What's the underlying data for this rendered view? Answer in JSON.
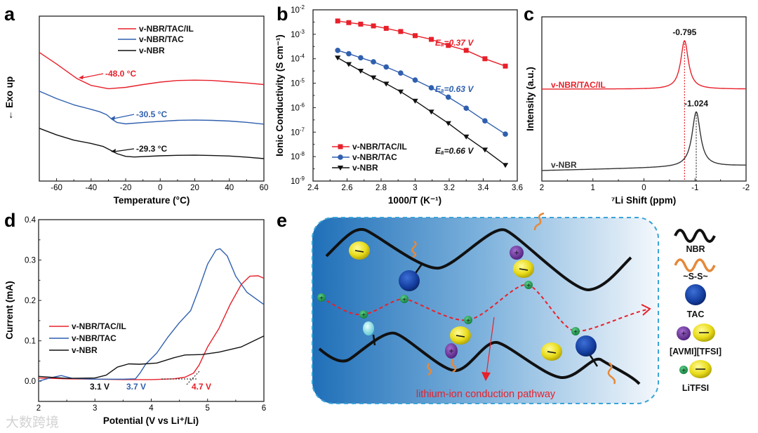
{
  "panels": {
    "a": "a",
    "b": "b",
    "c": "c",
    "d": "d",
    "e": "e"
  },
  "watermark": "大数跨境",
  "log_base_label": "10",
  "chart_data": [
    {
      "panel": "a",
      "type": "line",
      "title": "",
      "xlabel": "Temperature (°C)",
      "ylabel": "← Exo up",
      "xlim": [
        -70,
        60
      ],
      "ylim": [
        0,
        10
      ],
      "xticks": [
        -60,
        -40,
        -20,
        0,
        20,
        40,
        60
      ],
      "legend_position": "top-center",
      "series": [
        {
          "name": "v-NBR/TAC/IL",
          "color": "#e8202a",
          "points": [
            [
              -70,
              7.8
            ],
            [
              -60,
              7.1
            ],
            [
              -50,
              6.35
            ],
            [
              -48,
              6.2
            ],
            [
              -40,
              5.8
            ],
            [
              -30,
              5.6
            ],
            [
              -20,
              5.68
            ],
            [
              -10,
              5.85
            ],
            [
              0,
              6.0
            ],
            [
              10,
              6.1
            ],
            [
              20,
              6.12
            ],
            [
              30,
              6.1
            ],
            [
              40,
              6.02
            ],
            [
              50,
              5.95
            ],
            [
              60,
              5.85
            ]
          ]
        },
        {
          "name": "v-NBR/TAC",
          "color": "#2f5fae",
          "points": [
            [
              -70,
              5.45
            ],
            [
              -60,
              5.0
            ],
            [
              -50,
              4.62
            ],
            [
              -40,
              4.35
            ],
            [
              -35,
              4.2
            ],
            [
              -31,
              4.02
            ],
            [
              -28,
              3.75
            ],
            [
              -25,
              3.55
            ],
            [
              -20,
              3.47
            ],
            [
              -10,
              3.55
            ],
            [
              0,
              3.62
            ],
            [
              10,
              3.68
            ],
            [
              20,
              3.7
            ],
            [
              30,
              3.68
            ],
            [
              40,
              3.64
            ],
            [
              50,
              3.56
            ],
            [
              60,
              3.45
            ]
          ]
        },
        {
          "name": "v-NBR",
          "color": "#111111",
          "points": [
            [
              -70,
              3.2
            ],
            [
              -60,
              2.8
            ],
            [
              -50,
              2.48
            ],
            [
              -40,
              2.28
            ],
            [
              -33,
              2.1
            ],
            [
              -29,
              1.88
            ],
            [
              -25,
              1.66
            ],
            [
              -20,
              1.5
            ],
            [
              -15,
              1.46
            ],
            [
              0,
              1.53
            ],
            [
              10,
              1.56
            ],
            [
              20,
              1.57
            ],
            [
              30,
              1.55
            ],
            [
              40,
              1.52
            ],
            [
              50,
              1.45
            ],
            [
              60,
              1.36
            ]
          ]
        }
      ],
      "annotations": [
        {
          "text": "-48.0 °C",
          "x": -48.0,
          "color": "#e8202a"
        },
        {
          "text": "-30.5 °C",
          "x": -30.5,
          "color": "#2f5fae"
        },
        {
          "text": "-29.3 °C",
          "x": -29.3,
          "color": "#111111"
        }
      ]
    },
    {
      "panel": "b",
      "type": "line",
      "title": "",
      "xlabel": "1000/T (K⁻¹)",
      "ylabel": "Ionic Conductivity (S cm⁻¹)",
      "xlim": [
        2.4,
        3.6
      ],
      "ylim": [
        1e-09,
        0.01
      ],
      "yscale": "log",
      "xticks": [
        2.4,
        2.6,
        2.8,
        3.0,
        3.2,
        3.4,
        3.6
      ],
      "yticks": [
        -9,
        -8,
        -7,
        -6,
        -5,
        -4,
        -3,
        -2
      ],
      "legend_position": "bottom-left",
      "x": [
        2.545,
        2.61,
        2.68,
        2.755,
        2.83,
        2.915,
        3.0,
        3.095,
        3.195,
        3.3,
        3.41,
        3.53
      ],
      "series": [
        {
          "name": "v-NBR/TAC/IL",
          "color": "#e8202a",
          "marker": "square",
          "values": [
            0.0035,
            0.003,
            0.0026,
            0.0022,
            0.00175,
            0.0013,
            0.00088,
            0.00062,
            0.00035,
            0.00022,
            0.0001,
            5e-05
          ]
        },
        {
          "name": "v-NBR/TAC",
          "color": "#2f5fae",
          "marker": "circle",
          "values": [
            0.00022,
            0.00016,
            0.00011,
            7.5e-05,
            4.6e-05,
            2.6e-05,
            1.35e-05,
            6.5e-06,
            2.7e-06,
            9.5e-07,
            2.9e-07,
            8.3e-08
          ]
        },
        {
          "name": "v-NBR",
          "color": "#111111",
          "marker": "triangle-down",
          "values": [
            0.00011,
            6e-05,
            3.2e-05,
            1.7e-05,
            9.5e-06,
            4.5e-06,
            1.9e-06,
            6.8e-07,
            2.3e-07,
            6.5e-08,
            1.9e-08,
            4.5e-09
          ]
        }
      ],
      "annotations": [
        {
          "text": "Eₐ=0.37 V",
          "color": "#e8202a"
        },
        {
          "text": "Eₐ=0.63 V",
          "color": "#2f5fae"
        },
        {
          "text": "Eₐ=0.66 V",
          "color": "#111111"
        }
      ]
    },
    {
      "panel": "c",
      "type": "line",
      "title": "",
      "xlabel": "⁷Li Shift (ppm)",
      "ylabel": "Intensity (a.u.)",
      "xlim": [
        2,
        -2
      ],
      "ylim": [
        0,
        10
      ],
      "xticks": [
        2,
        1,
        0,
        -1,
        -2
      ],
      "series": [
        {
          "name": "v-NBR/TAC/IL",
          "color": "#e8202a",
          "baseline": [
            5.6,
            5.6
          ],
          "peak_center": -0.795,
          "peak_height": 2.95,
          "hwhm": 0.09,
          "peak_label": "-0.795"
        },
        {
          "name": "v-NBR",
          "color": "#333333",
          "baseline": [
            0.64,
            0.94
          ],
          "peak_center": -1.024,
          "peak_height": 3.35,
          "hwhm": 0.1,
          "peak_label": "-1.024"
        }
      ]
    },
    {
      "panel": "d",
      "type": "line",
      "title": "",
      "xlabel": "Potential (V vs Li⁺/Li)",
      "ylabel": "Current (mA)",
      "xlim": [
        2,
        6
      ],
      "ylim": [
        -0.05,
        0.4
      ],
      "xticks": [
        2,
        3,
        4,
        5,
        6
      ],
      "yticks": [
        0.0,
        0.1,
        0.2,
        0.3,
        0.4
      ],
      "legend_position": "center-left",
      "series": [
        {
          "name": "v-NBR/TAC/IL",
          "color": "#e8202a",
          "points": [
            [
              2,
              0.008
            ],
            [
              2.5,
              0.006
            ],
            [
              3,
              0.005
            ],
            [
              3.5,
              0.004
            ],
            [
              4,
              0.004
            ],
            [
              4.4,
              0.006
            ],
            [
              4.6,
              0.01
            ],
            [
              4.75,
              0.02
            ],
            [
              4.85,
              0.04
            ],
            [
              5.0,
              0.085
            ],
            [
              5.2,
              0.13
            ],
            [
              5.4,
              0.19
            ],
            [
              5.6,
              0.24
            ],
            [
              5.75,
              0.26
            ],
            [
              5.9,
              0.261
            ],
            [
              6,
              0.255
            ]
          ]
        },
        {
          "name": "v-NBR/TAC",
          "color": "#2f5fae",
          "points": [
            [
              2,
              0.0
            ],
            [
              2.2,
              0.008
            ],
            [
              2.4,
              0.014
            ],
            [
              2.6,
              0.007
            ],
            [
              3,
              0.005
            ],
            [
              3.5,
              0.005
            ],
            [
              3.72,
              0.006
            ],
            [
              3.8,
              0.02
            ],
            [
              3.9,
              0.042
            ],
            [
              4.1,
              0.07
            ],
            [
              4.3,
              0.11
            ],
            [
              4.5,
              0.145
            ],
            [
              4.7,
              0.175
            ],
            [
              4.85,
              0.23
            ],
            [
              5.0,
              0.29
            ],
            [
              5.15,
              0.325
            ],
            [
              5.22,
              0.328
            ],
            [
              5.35,
              0.31
            ],
            [
              5.5,
              0.26
            ],
            [
              5.7,
              0.22
            ],
            [
              6,
              0.19
            ]
          ]
        },
        {
          "name": "v-NBR",
          "color": "#111111",
          "points": [
            [
              2,
              0.012
            ],
            [
              2.5,
              0.007
            ],
            [
              3,
              0.008
            ],
            [
              3.2,
              0.015
            ],
            [
              3.4,
              0.035
            ],
            [
              3.6,
              0.043
            ],
            [
              3.8,
              0.042
            ],
            [
              4.1,
              0.045
            ],
            [
              4.4,
              0.058
            ],
            [
              4.6,
              0.065
            ],
            [
              4.9,
              0.066
            ],
            [
              5.2,
              0.072
            ],
            [
              5.6,
              0.085
            ],
            [
              6,
              0.112
            ]
          ]
        }
      ],
      "annotations": [
        {
          "text": "3.1 V",
          "color": "#111111"
        },
        {
          "text": "3.7 V",
          "color": "#2f5fae"
        },
        {
          "text": "4.7 V",
          "color": "#e8202a"
        }
      ]
    }
  ],
  "diagram": {
    "caption": "lithium-ion conduction pathway",
    "legend": [
      {
        "label": "NBR",
        "icon": "black-chain-icon"
      },
      {
        "label": "~S-S~",
        "icon": "orange-disulfide-chain-icon"
      },
      {
        "label": "TAC",
        "icon": "blue-sphere-icon"
      },
      {
        "label": "[AVMI][TFSI]",
        "icon": "purple-cation-yellow-anion-icon"
      },
      {
        "label": "LiTFSI",
        "icon": "green-cation-yellow-anion-icon"
      }
    ],
    "colors": {
      "path": "#e8202a",
      "box_border": "#3aa3d8",
      "gradient_start": "#1f6fb8",
      "gradient_end": "#f4f8fc"
    }
  }
}
